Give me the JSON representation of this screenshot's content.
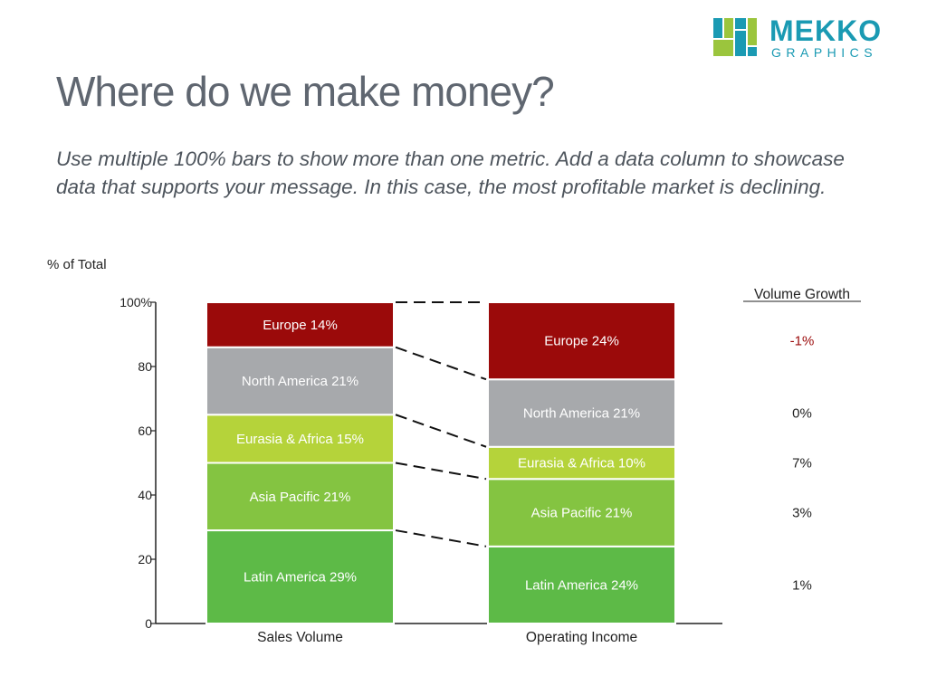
{
  "header": {
    "title": "Where do we make money?",
    "subtitle": "Use multiple 100% bars to show more than one metric. Add a data column to showcase data that supports your message. In this case, the most profitable market is declining."
  },
  "logo": {
    "main": "MEKKO",
    "sub": "GRAPHICS",
    "color": "#1a9ab3",
    "accent": "#9bc53d"
  },
  "chart_data": {
    "type": "bar",
    "stacked": "100%",
    "ylabel": "% of Total",
    "ylim": [
      0,
      100
    ],
    "yticks": [
      "0",
      "20",
      "40",
      "60",
      "80",
      "100%"
    ],
    "ytick_values": [
      0,
      20,
      40,
      60,
      80,
      100
    ],
    "categories": [
      "Sales Volume",
      "Operating Income"
    ],
    "series": [
      {
        "name": "Latin America",
        "color": "#5dba47",
        "values": [
          29,
          24
        ],
        "labels": [
          "Latin America 29%",
          "Latin America 24%"
        ]
      },
      {
        "name": "Asia Pacific",
        "color": "#84c441",
        "values": [
          21,
          21
        ],
        "labels": [
          "Asia Pacific 21%",
          "Asia Pacific 21%"
        ]
      },
      {
        "name": "Eurasia & Africa",
        "color": "#b5d33a",
        "values": [
          15,
          10
        ],
        "labels": [
          "Eurasia & Africa 15%",
          "Eurasia & Africa 10%"
        ]
      },
      {
        "name": "North America",
        "color": "#a7a9ac",
        "values": [
          21,
          21
        ],
        "labels": [
          "North America  21%",
          "North America  21%"
        ]
      },
      {
        "name": "Europe",
        "color": "#9b0a0a",
        "values": [
          14,
          24
        ],
        "labels": [
          "Europe 14%",
          "Europe 24%"
        ]
      }
    ],
    "side_column": {
      "header": "Volume Growth",
      "values": [
        "1%",
        "3%",
        "7%",
        "0%",
        "-1%"
      ],
      "highlight_color": "#9b0a0a"
    },
    "connectors": "dashed",
    "grid": false
  }
}
